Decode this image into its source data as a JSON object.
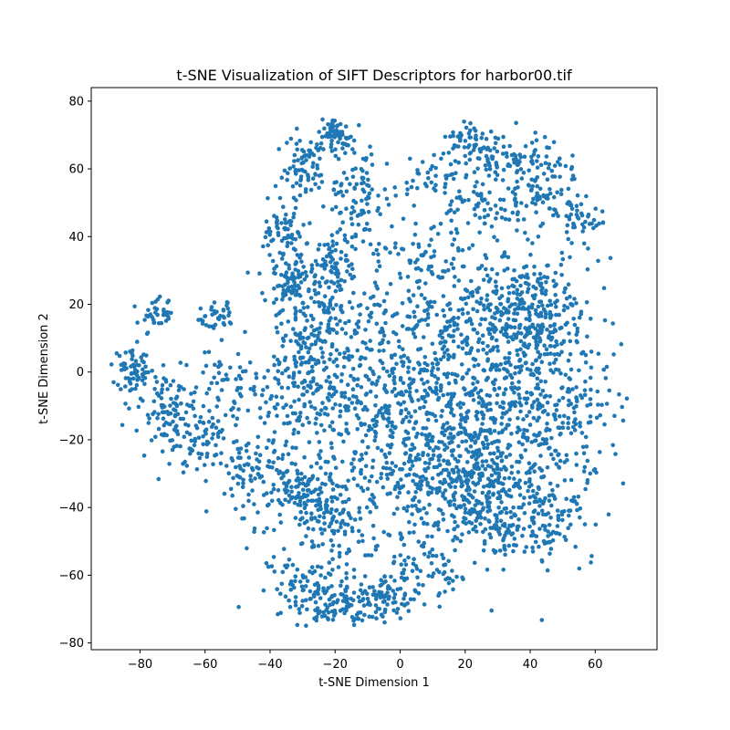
{
  "chart_data": {
    "type": "scatter",
    "title": "t-SNE Visualization of SIFT Descriptors for harbor00.tif",
    "xlabel": "t-SNE Dimension 1",
    "ylabel": "t-SNE Dimension 2",
    "xlim": [
      -95,
      79
    ],
    "ylim": [
      -82,
      84
    ],
    "xticks": [
      -80,
      -60,
      -40,
      -20,
      0,
      20,
      40,
      60
    ],
    "yticks": [
      -80,
      -60,
      -40,
      -20,
      0,
      20,
      40,
      60,
      80
    ],
    "grid": false,
    "legend": "none",
    "marker_color": "#1f77b4",
    "series": [
      {
        "point_count": 4200,
        "clusters": [
          {
            "x": 28,
            "y": -10,
            "sx": 17,
            "sy": 22,
            "w": 3.2
          },
          {
            "x": 22,
            "y": -32,
            "sx": 8,
            "sy": 8,
            "w": 0.8
          },
          {
            "x": 38,
            "y": 18,
            "sx": 10,
            "sy": 8,
            "w": 0.9
          },
          {
            "x": 48,
            "y": -10,
            "sx": 9,
            "sy": 18,
            "w": 0.7
          },
          {
            "x": 8,
            "y": 5,
            "sx": 10,
            "sy": 20,
            "w": 0.9
          },
          {
            "x": 30,
            "y": 64,
            "sx": 9,
            "sy": 4,
            "w": 0.45
          },
          {
            "x": 44,
            "y": 55,
            "sx": 6,
            "sy": 5,
            "w": 0.3
          },
          {
            "x": 56,
            "y": 45,
            "sx": 4,
            "sy": 3,
            "w": 0.15
          },
          {
            "x": 20,
            "y": 68,
            "sx": 3,
            "sy": 3,
            "w": 0.12
          },
          {
            "x": 22,
            "y": 50,
            "sx": 4,
            "sy": 3,
            "w": 0.12
          },
          {
            "x": 33,
            "y": 47,
            "sx": 5,
            "sy": 4,
            "w": 0.15
          },
          {
            "x": 10,
            "y": 57,
            "sx": 5,
            "sy": 3,
            "w": 0.12
          },
          {
            "x": 8,
            "y": 35,
            "sx": 5,
            "sy": 5,
            "w": 0.15
          },
          {
            "x": -20,
            "y": 70,
            "sx": 3,
            "sy": 2.5,
            "w": 0.25
          },
          {
            "x": -30,
            "y": 60,
            "sx": 4,
            "sy": 5,
            "w": 0.3
          },
          {
            "x": -12,
            "y": 52,
            "sx": 5,
            "sy": 8,
            "w": 0.4
          },
          {
            "x": -36,
            "y": 42,
            "sx": 3,
            "sy": 3,
            "w": 0.2
          },
          {
            "x": -34,
            "y": 27,
            "sx": 4,
            "sy": 5,
            "w": 0.35
          },
          {
            "x": -20,
            "y": 32,
            "sx": 5,
            "sy": 5,
            "w": 0.3
          },
          {
            "x": -25,
            "y": 15,
            "sx": 9,
            "sy": 8,
            "w": 0.6
          },
          {
            "x": -28,
            "y": -5,
            "sx": 10,
            "sy": 10,
            "w": 0.7
          },
          {
            "x": -12,
            "y": -10,
            "sx": 8,
            "sy": 12,
            "w": 0.6
          },
          {
            "x": -82,
            "y": 0,
            "sx": 3,
            "sy": 3,
            "w": 0.25
          },
          {
            "x": -75,
            "y": 17,
            "sx": 2.5,
            "sy": 2.5,
            "w": 0.15
          },
          {
            "x": -56,
            "y": 16,
            "sx": 3,
            "sy": 2.5,
            "w": 0.15
          },
          {
            "x": -72,
            "y": -10,
            "sx": 5,
            "sy": 5,
            "w": 0.35
          },
          {
            "x": -62,
            "y": -20,
            "sx": 5,
            "sy": 5,
            "w": 0.3
          },
          {
            "x": -52,
            "y": -5,
            "sx": 6,
            "sy": 6,
            "w": 0.25
          },
          {
            "x": -45,
            "y": -30,
            "sx": 6,
            "sy": 7,
            "w": 0.4
          },
          {
            "x": -30,
            "y": -35,
            "sx": 5,
            "sy": 5,
            "w": 0.45
          },
          {
            "x": -20,
            "y": -45,
            "sx": 5,
            "sy": 8,
            "w": 0.4
          },
          {
            "x": -28,
            "y": -62,
            "sx": 6,
            "sy": 5,
            "w": 0.3
          },
          {
            "x": -20,
            "y": -70,
            "sx": 7,
            "sy": 3,
            "w": 0.35
          },
          {
            "x": -5,
            "y": -67,
            "sx": 6,
            "sy": 3,
            "w": 0.3
          },
          {
            "x": 5,
            "y": -60,
            "sx": 7,
            "sy": 4,
            "w": 0.2
          },
          {
            "x": 5,
            "y": -35,
            "sx": 12,
            "sy": 12,
            "w": 0.7
          },
          {
            "x": 40,
            "y": -45,
            "sx": 10,
            "sy": 6,
            "w": 0.5
          }
        ]
      }
    ]
  }
}
